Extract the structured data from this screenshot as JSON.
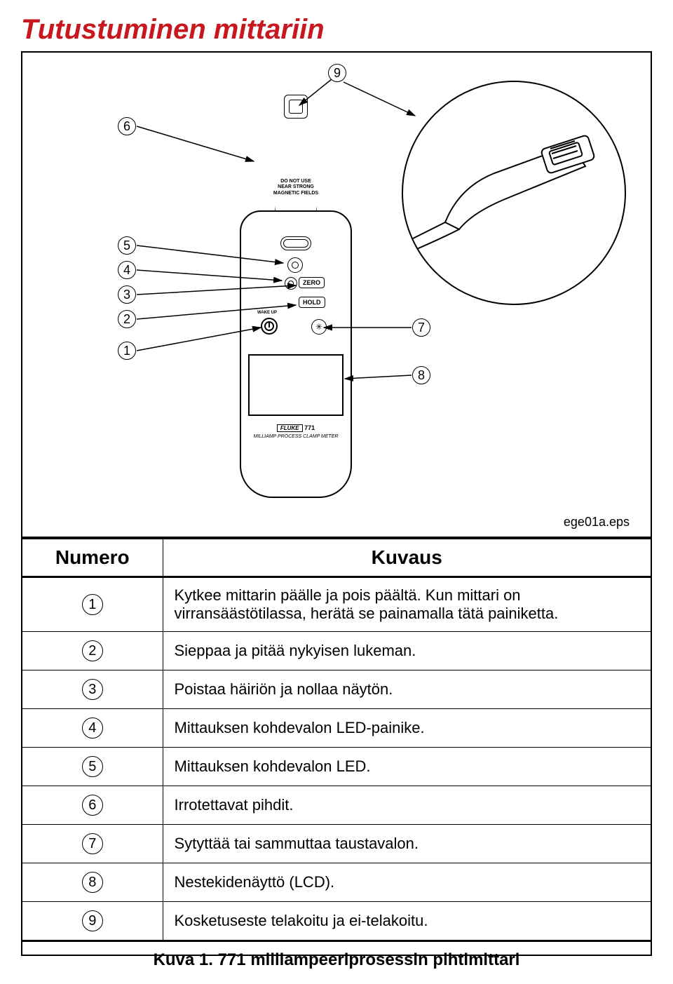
{
  "title": "Tutustuminen mittariin",
  "title_color": "#c8171e",
  "device": {
    "warning_l1": "DO NOT USE",
    "warning_l2": "NEAR STRONG",
    "warning_l3": "MAGNETIC FIELDS",
    "zero_label": "ZERO",
    "hold_label": "HOLD",
    "wakeup_label": "WAKE UP",
    "brand": "FLUKE",
    "model": "771",
    "model_desc": "MILLIAMP PROCESS CLAMP METER"
  },
  "callout_numbers": [
    "1",
    "2",
    "3",
    "4",
    "5",
    "6",
    "7",
    "8",
    "9"
  ],
  "eps_label": "ege01a.eps",
  "table": {
    "header_num": "Numero",
    "header_desc": "Kuvaus",
    "rows": [
      {
        "n": "1",
        "d": "Kytkee mittarin päälle ja pois päältä. Kun mittari on virransäästötilassa, herätä se painamalla tätä painiketta."
      },
      {
        "n": "2",
        "d": "Sieppaa ja pitää nykyisen lukeman."
      },
      {
        "n": "3",
        "d": "Poistaa häiriön ja nollaa näytön."
      },
      {
        "n": "4",
        "d": "Mittauksen kohdevalon LED-painike."
      },
      {
        "n": "5",
        "d": "Mittauksen kohdevalon LED."
      },
      {
        "n": "6",
        "d": "Irrotettavat pihdit."
      },
      {
        "n": "7",
        "d": "Sytyttää tai sammuttaa taustavalon."
      },
      {
        "n": "8",
        "d": "Nestekidenäyttö (LCD)."
      },
      {
        "n": "9",
        "d": "Kosketuseste telakoitu ja ei-telakoitu."
      }
    ]
  },
  "caption": "Kuva 1. 771 milliampeeriprosessin pihtimittari"
}
